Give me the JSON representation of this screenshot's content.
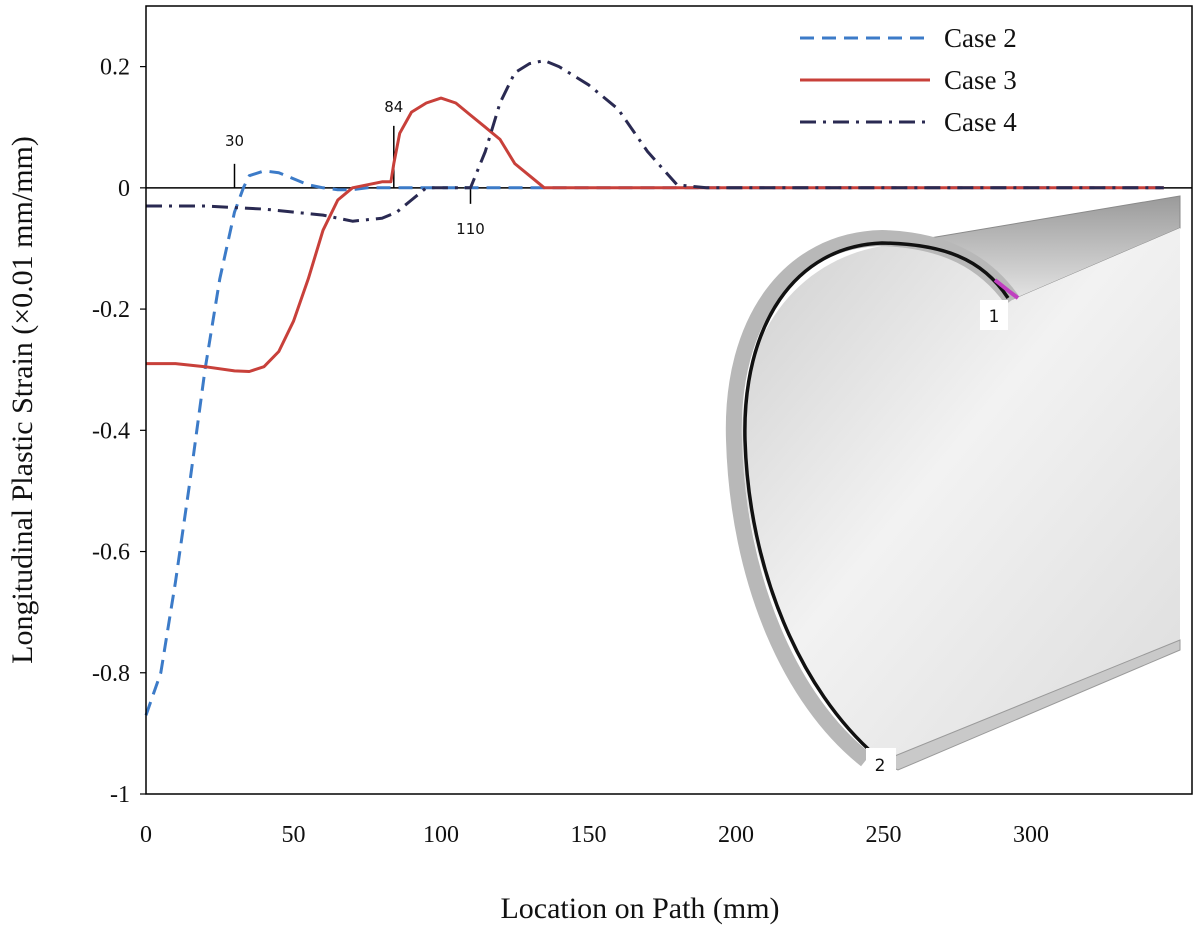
{
  "chart_data": {
    "type": "line",
    "title": "",
    "xlabel": "Location on Path (mm)",
    "ylabel": "Longitudinal Plastic Strain (×0.01 mm/mm)",
    "xlim": [
      0,
      345
    ],
    "ylim": [
      -1,
      0.3
    ],
    "x_ticks": [
      0,
      50,
      100,
      150,
      200,
      250,
      300
    ],
    "x_tick_labels": [
      "0",
      "50",
      "100",
      "150",
      "200",
      "250",
      "300"
    ],
    "y_ticks": [
      0.2,
      0,
      -0.2,
      -0.4,
      -0.6,
      -0.8,
      -1
    ],
    "y_tick_labels": [
      "0.2",
      "0",
      "-0.2",
      "-0.4",
      "-0.6",
      "-0.8",
      "-1"
    ],
    "grid": false,
    "legend_position": "top-right",
    "series": [
      {
        "name": "Case 2",
        "style": "dashed",
        "color": "#3c7bc8",
        "x": [
          0,
          5,
          10,
          15,
          20,
          25,
          30,
          33,
          35,
          40,
          45,
          50,
          55,
          60,
          65,
          70,
          75,
          80,
          90,
          100,
          120,
          150,
          200,
          250,
          300,
          345
        ],
        "y": [
          -0.87,
          -0.8,
          -0.65,
          -0.48,
          -0.3,
          -0.15,
          -0.04,
          0.0,
          0.02,
          0.028,
          0.025,
          0.015,
          0.005,
          0.0,
          -0.003,
          -0.003,
          0.0,
          0.0,
          0.0,
          0.0,
          0.0,
          0.0,
          0.0,
          0.0,
          0.0,
          0.0
        ]
      },
      {
        "name": "Case 3",
        "style": "solid",
        "color": "#c8403a",
        "x": [
          0,
          10,
          20,
          30,
          35,
          40,
          45,
          50,
          55,
          60,
          65,
          70,
          75,
          80,
          83,
          84,
          86,
          90,
          95,
          100,
          105,
          110,
          115,
          120,
          125,
          130,
          135,
          140,
          150,
          200,
          250,
          300,
          345
        ],
        "y": [
          -0.29,
          -0.29,
          -0.295,
          -0.302,
          -0.303,
          -0.295,
          -0.27,
          -0.22,
          -0.15,
          -0.07,
          -0.02,
          0.0,
          0.005,
          0.01,
          0.01,
          0.04,
          0.09,
          0.125,
          0.14,
          0.148,
          0.14,
          0.12,
          0.1,
          0.08,
          0.04,
          0.02,
          0.0,
          0.0,
          0.0,
          0.0,
          0.0,
          0.0,
          0.0
        ]
      },
      {
        "name": "Case 4",
        "style": "dash-dot",
        "color": "#2a2a52",
        "x": [
          0,
          20,
          40,
          60,
          70,
          80,
          85,
          90,
          95,
          100,
          105,
          110,
          115,
          120,
          125,
          130,
          135,
          140,
          150,
          160,
          170,
          180,
          190,
          200,
          250,
          300,
          345
        ],
        "y": [
          -0.03,
          -0.03,
          -0.035,
          -0.045,
          -0.055,
          -0.05,
          -0.04,
          -0.02,
          0.0,
          0.0,
          0.0,
          0.0,
          0.06,
          0.14,
          0.19,
          0.205,
          0.21,
          0.2,
          0.17,
          0.13,
          0.06,
          0.005,
          0.0,
          0.0,
          0.0,
          0.0,
          0.0
        ]
      }
    ],
    "annotations": [
      {
        "label": "30",
        "x": 30,
        "side": "above"
      },
      {
        "label": "84",
        "x": 84,
        "side": "above"
      },
      {
        "label": "110",
        "x": 110,
        "side": "below"
      }
    ],
    "inset": {
      "description_labels": [
        "1",
        "2"
      ]
    }
  }
}
